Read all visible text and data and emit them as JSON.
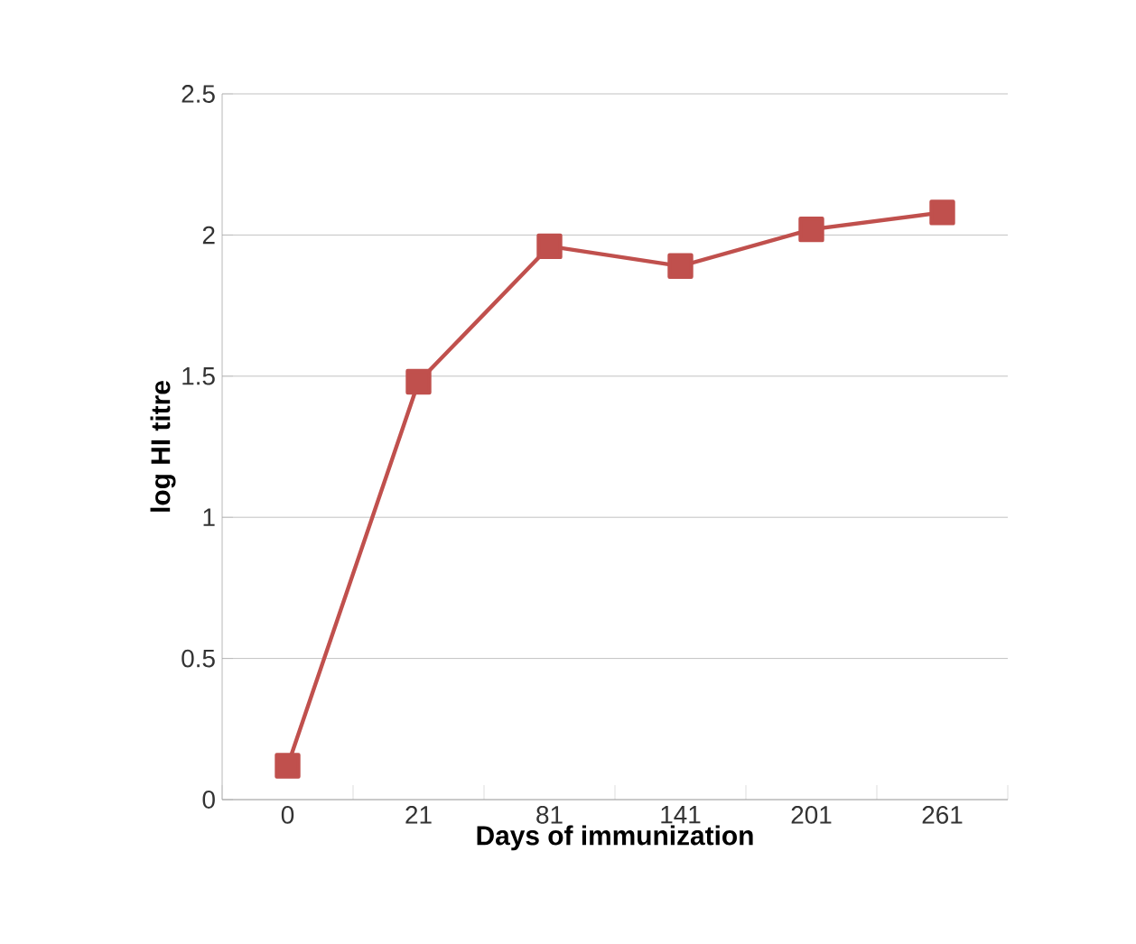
{
  "chart_data": {
    "type": "line",
    "xlabel": "Days of immunization",
    "ylabel": "log HI titre",
    "categories": [
      "0",
      "21",
      "81",
      "141",
      "201",
      "261"
    ],
    "series": [
      {
        "color": "#c0504d",
        "values": [
          0.12,
          1.48,
          1.96,
          1.89,
          2.02,
          2.08
        ]
      }
    ],
    "ylim": [
      0,
      2.5
    ],
    "yticks": [
      0,
      0.5,
      1,
      1.5,
      2,
      2.5
    ],
    "grid": "y",
    "marker": "square",
    "line_style": "solid"
  }
}
